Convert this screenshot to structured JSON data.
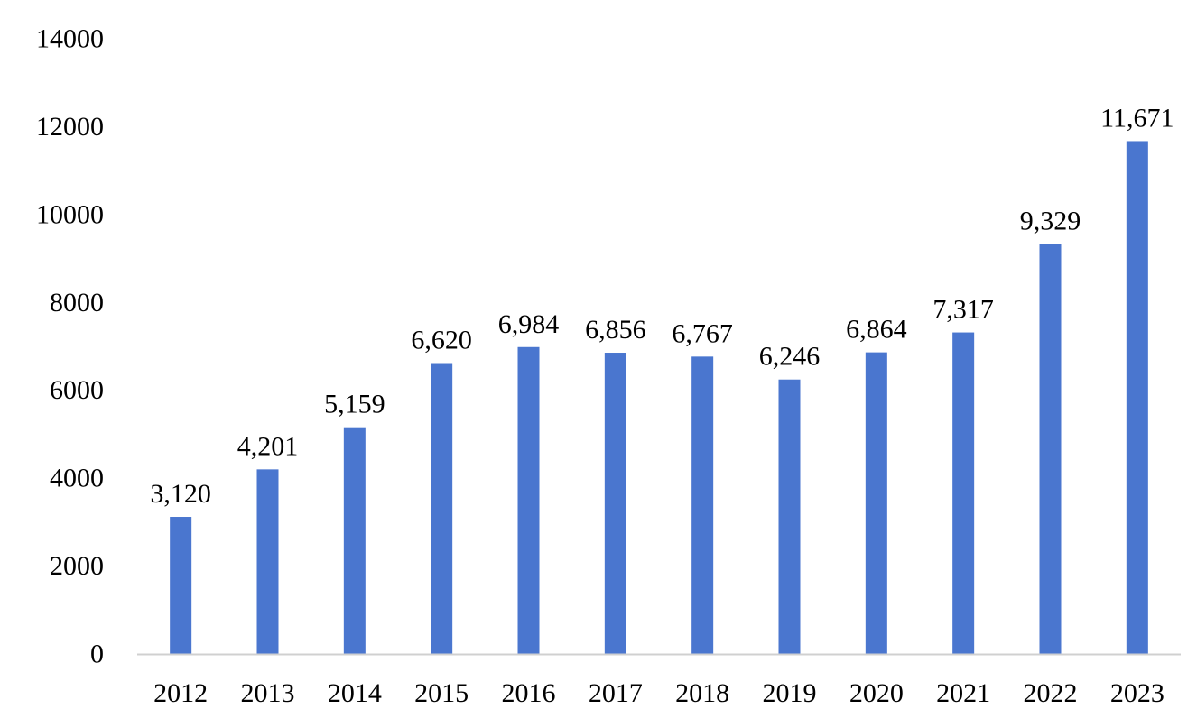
{
  "chart_data": {
    "type": "bar",
    "title": "",
    "xlabel": "",
    "ylabel": "",
    "categories": [
      "2012",
      "2013",
      "2014",
      "2015",
      "2016",
      "2017",
      "2018",
      "2019",
      "2020",
      "2021",
      "2022",
      "2023"
    ],
    "values": [
      3120,
      4201,
      5159,
      6620,
      6984,
      6856,
      6767,
      6246,
      6864,
      7317,
      9329,
      11671
    ],
    "data_labels": [
      "3,120",
      "4,201",
      "5,159",
      "6,620",
      "6,984",
      "6,856",
      "6,767",
      "6,246",
      "6,864",
      "7,317",
      "9,329",
      "11,671"
    ],
    "ylim": [
      0,
      14000
    ],
    "yticks": [
      0,
      2000,
      4000,
      6000,
      8000,
      10000,
      12000,
      14000
    ],
    "ytick_labels": [
      "0",
      "2000",
      "4000",
      "6000",
      "8000",
      "10000",
      "12000",
      "14000"
    ],
    "grid": false,
    "legend": "none",
    "bar_color": "#4a76cf",
    "axis_color": "#d0d0d0"
  }
}
